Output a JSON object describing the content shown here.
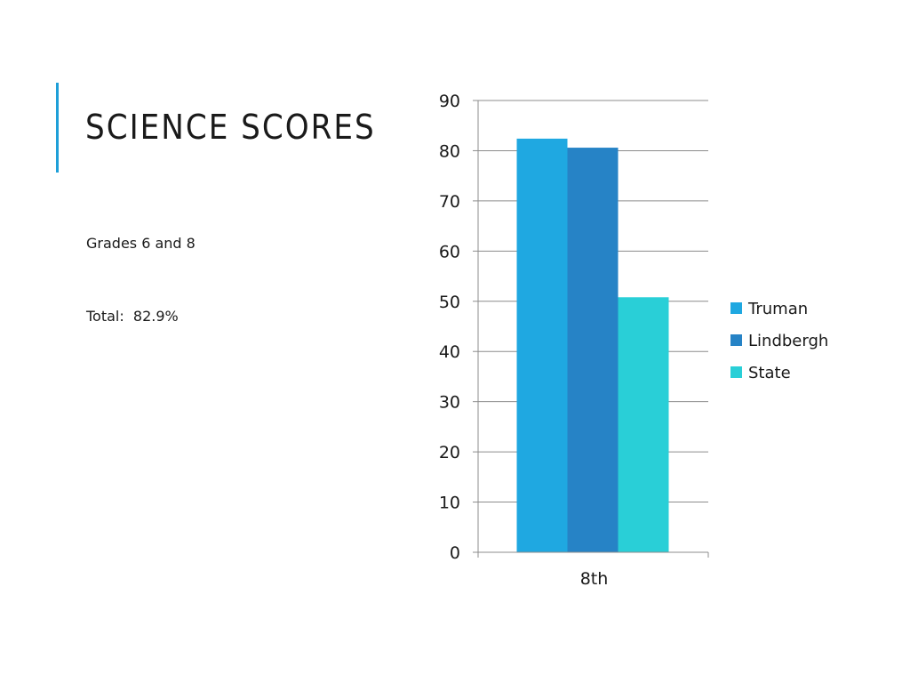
{
  "slide": {
    "title": "SCIENCE SCORES",
    "subtitle": "Grades 6 and 8",
    "total": "Total:  82.9%",
    "accent_color": "#1e9fd8"
  },
  "chart_data": {
    "type": "bar",
    "categories": [
      "8th"
    ],
    "series": [
      {
        "name": "Truman",
        "values": [
          82.4
        ],
        "color": "#1fa8e1"
      },
      {
        "name": "Lindbergh",
        "values": [
          80.6
        ],
        "color": "#2683c6"
      },
      {
        "name": "State",
        "values": [
          50.8
        ],
        "color": "#29cfd7"
      }
    ],
    "ylim": [
      0,
      90
    ],
    "yticks": [
      0,
      10,
      20,
      30,
      40,
      50,
      60,
      70,
      80,
      90
    ],
    "grid": true,
    "legend_position": "right"
  }
}
